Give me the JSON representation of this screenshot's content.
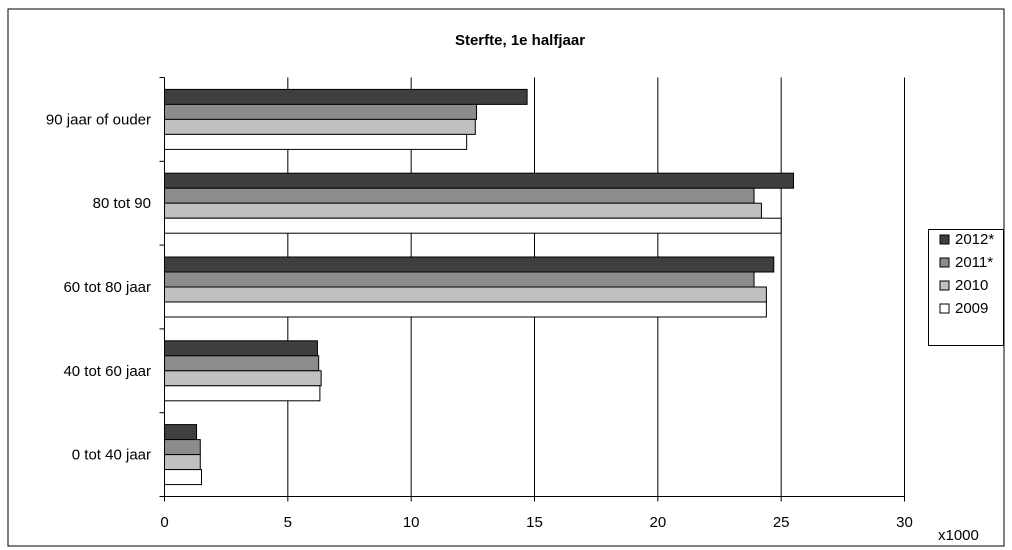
{
  "chart_data": {
    "type": "bar",
    "orientation": "horizontal",
    "title": "Sterfte, 1e halfjaar",
    "xlabel": "",
    "ylabel": "",
    "x_unit_label": "x1000",
    "xlim": [
      0,
      30
    ],
    "x_ticks": [
      0,
      5,
      10,
      15,
      20,
      25,
      30
    ],
    "grid": "vertical",
    "legend_position": "right",
    "categories": [
      "0 tot 40 jaar",
      "40 tot 60 jaar",
      "60 tot 80 jaar",
      "80 tot 90",
      "90 jaar of ouder"
    ],
    "series": [
      {
        "name": "2012*",
        "color": "#3f3f3f",
        "values": [
          1.3,
          6.2,
          24.7,
          25.5,
          14.7
        ]
      },
      {
        "name": "2011*",
        "color": "#8c8c8c",
        "values": [
          1.45,
          6.25,
          23.9,
          23.9,
          12.65
        ]
      },
      {
        "name": "2010",
        "color": "#c0c0c0",
        "values": [
          1.45,
          6.35,
          24.4,
          24.2,
          12.6
        ]
      },
      {
        "name": "2009",
        "color": "#ffffff",
        "values": [
          1.5,
          6.3,
          24.4,
          25.0,
          12.25
        ]
      }
    ]
  }
}
